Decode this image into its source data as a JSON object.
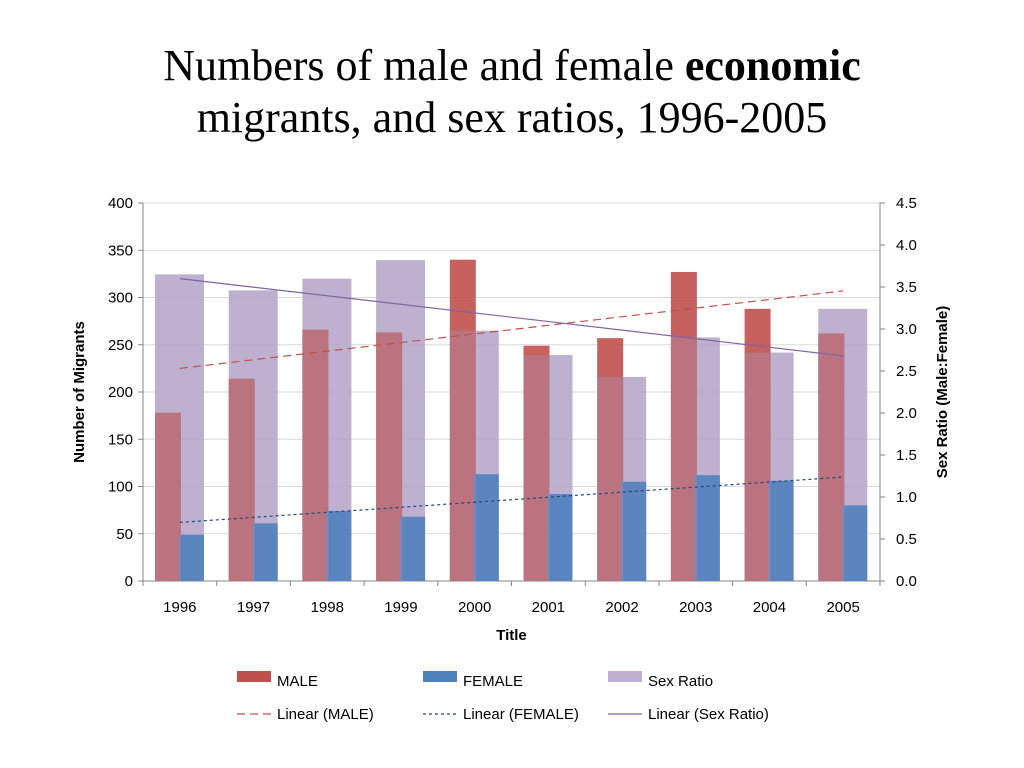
{
  "page_title": {
    "line1_prefix": "Numbers of male and female ",
    "line1_bold": "economic",
    "line2": "migrants, and sex ratios, 1996-2005"
  },
  "chart_data": {
    "type": "bar",
    "categories": [
      "1996",
      "1997",
      "1998",
      "1999",
      "2000",
      "2001",
      "2002",
      "2003",
      "2004",
      "2005"
    ],
    "series": [
      {
        "name": "Sex Ratio",
        "axis": "right",
        "color": "#b3a2c7",
        "opacity": 0.85,
        "values": [
          3.65,
          3.46,
          3.6,
          3.82,
          2.98,
          2.69,
          2.43,
          2.9,
          2.72,
          3.24
        ]
      },
      {
        "name": "MALE",
        "axis": "left",
        "color": "#c0504d",
        "values": [
          178,
          214,
          266,
          263,
          340,
          249,
          257,
          327,
          288,
          262
        ]
      },
      {
        "name": "FEMALE",
        "axis": "left",
        "color": "#4f81bd",
        "values": [
          49,
          61,
          74,
          68,
          113,
          92,
          105,
          112,
          106,
          80
        ]
      }
    ],
    "trendlines": [
      {
        "name": "Linear (MALE)",
        "color": "#c0504d",
        "dash": "8,5",
        "axis": "left",
        "start": 225,
        "end": 307
      },
      {
        "name": "Linear (FEMALE)",
        "color": "#1f497d",
        "dash": "3,3",
        "axis": "left",
        "start": 62,
        "end": 110
      },
      {
        "name": "Linear (Sex Ratio)",
        "color": "#8064a2",
        "dash": "",
        "axis": "right",
        "start": 3.6,
        "end": 2.68
      }
    ],
    "left_axis": {
      "label": "Number of Migrants",
      "min": 0,
      "max": 400,
      "step": 50,
      "ticks": [
        "0",
        "50",
        "100",
        "150",
        "200",
        "250",
        "300",
        "350",
        "400"
      ]
    },
    "right_axis": {
      "label": "Sex Ratio (Male:Female)",
      "min": 0,
      "max": 4.5,
      "step": 0.5,
      "ticks": [
        "0.0",
        "0.5",
        "1.0",
        "1.5",
        "2.0",
        "2.5",
        "3.0",
        "3.5",
        "4.0",
        "4.5"
      ]
    },
    "xlabel": "Title",
    "legend_position": "bottom",
    "legend": [
      [
        "MALE",
        "FEMALE",
        "Sex Ratio"
      ],
      [
        "Linear (MALE)",
        "Linear (FEMALE)",
        "Linear (Sex Ratio)"
      ]
    ]
  }
}
